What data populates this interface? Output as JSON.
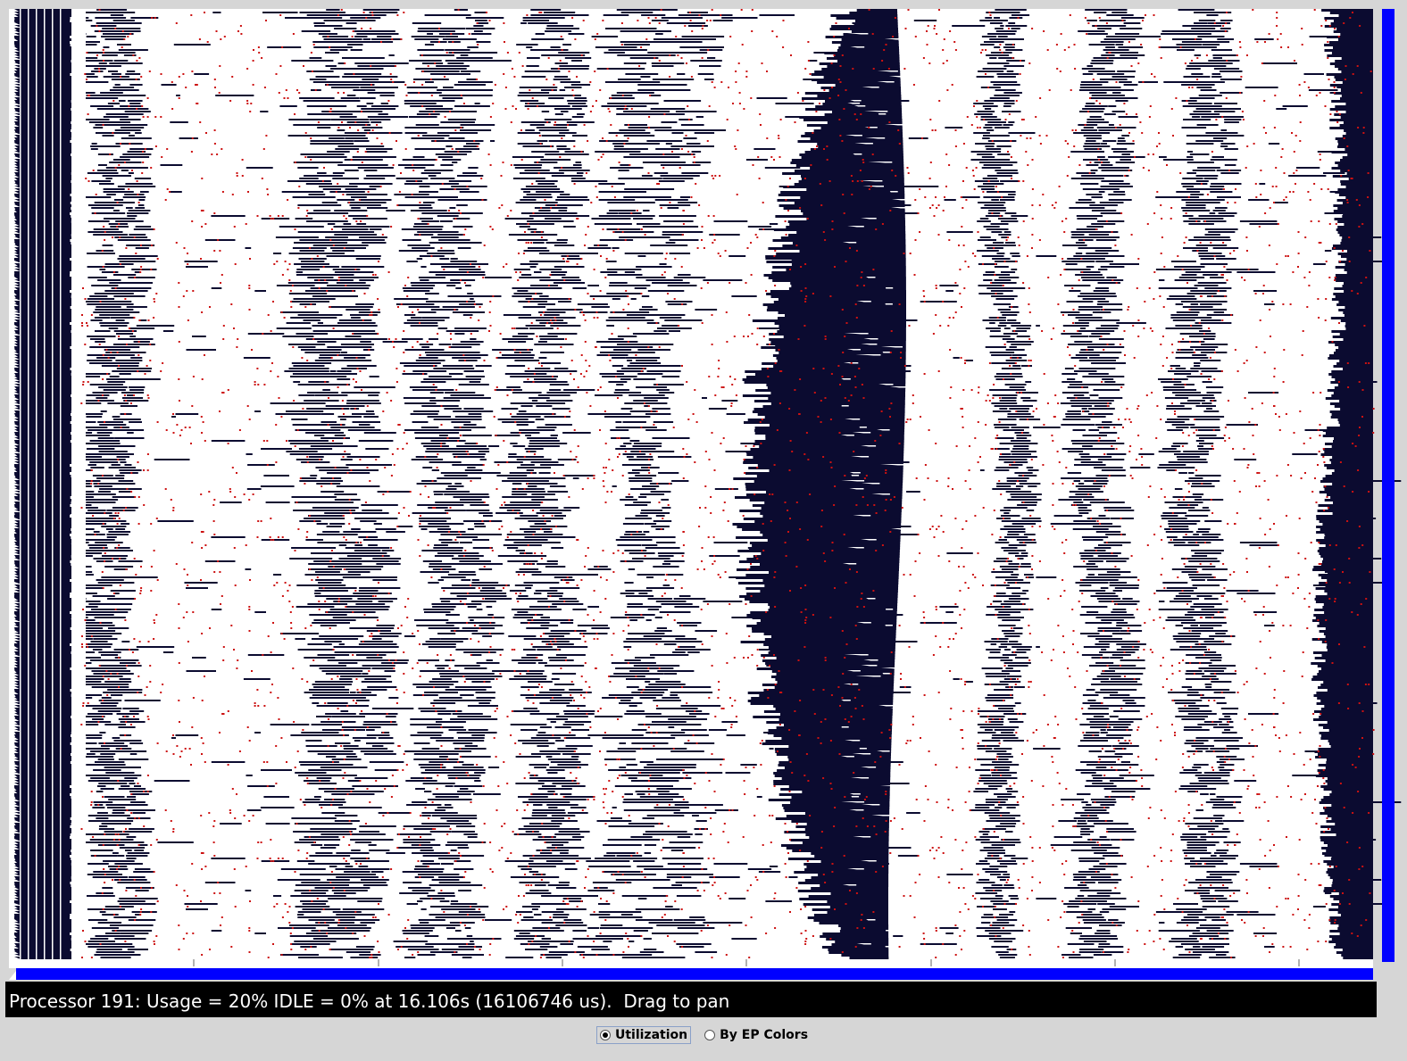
{
  "status_text": "Processor 191: Usage = 20% IDLE = 0% at 16.106s (16106746 us).  Drag to pan",
  "options": [
    {
      "label": "Utilization",
      "selected": true
    },
    {
      "label": "By EP Colors",
      "selected": false
    }
  ]
}
